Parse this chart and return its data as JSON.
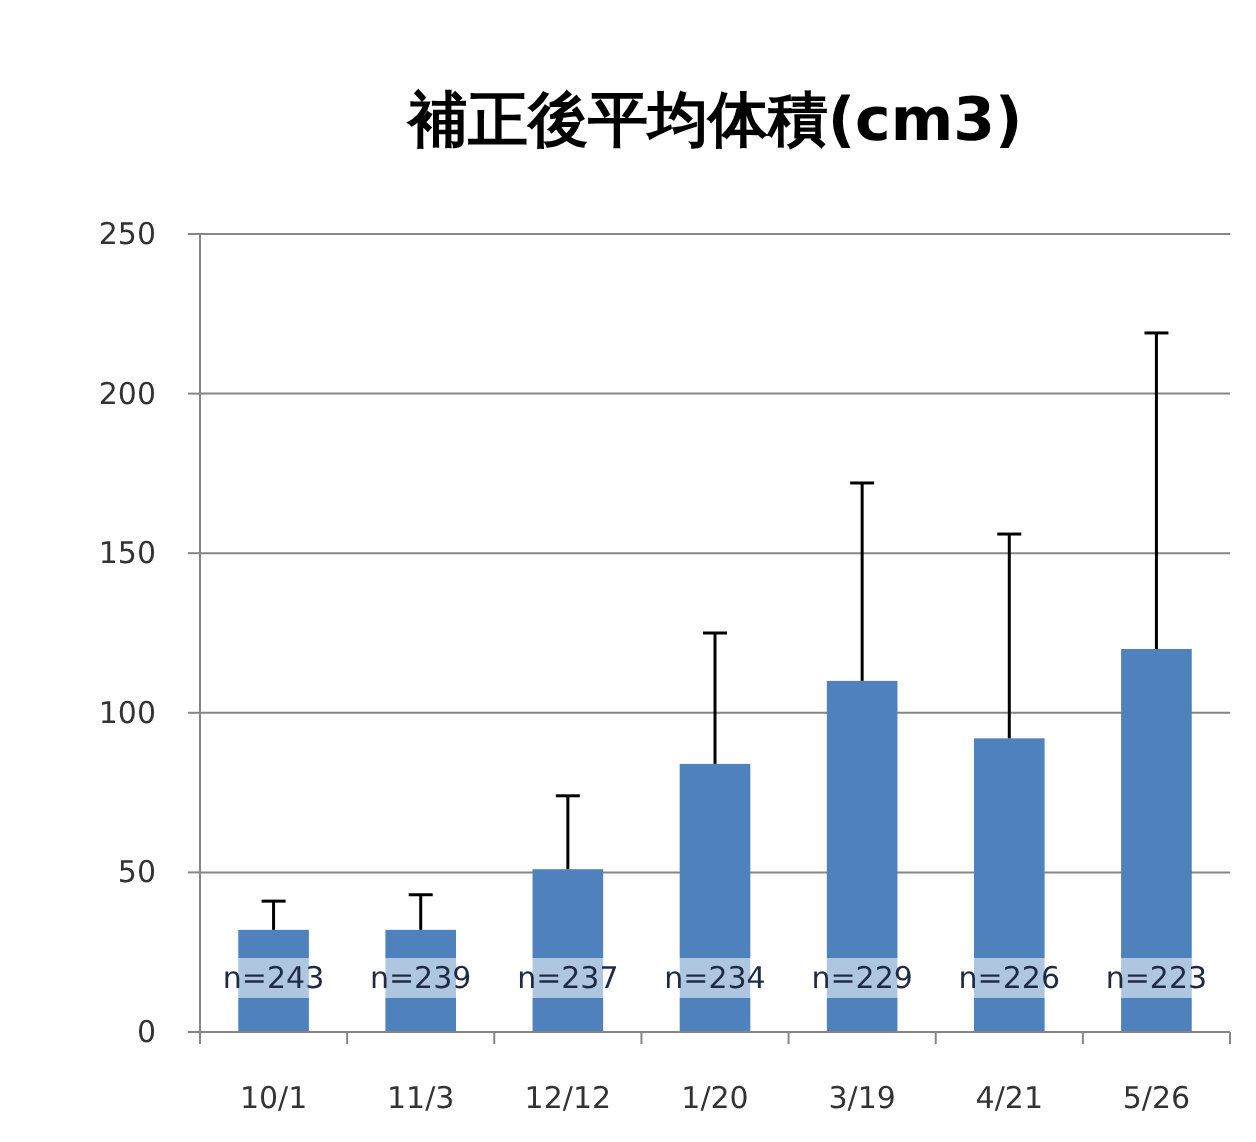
{
  "chart_data": {
    "type": "bar",
    "title": "補正後平均体積(cm3)",
    "categories": [
      "10/1",
      "11/3",
      "12/12",
      "1/20",
      "3/19",
      "4/21",
      "5/26"
    ],
    "values": [
      32,
      32,
      51,
      84,
      110,
      92,
      120
    ],
    "errors": [
      [
        32,
        41
      ],
      [
        32,
        43
      ],
      [
        51,
        74
      ],
      [
        84,
        125
      ],
      [
        110,
        172
      ],
      [
        92,
        156
      ],
      [
        120,
        219
      ]
    ],
    "color": "#4f81bd",
    "ylim": [
      0,
      250
    ],
    "yticks": [
      0,
      50,
      100,
      150,
      200,
      250
    ],
    "grid": "y",
    "annotations": [
      "n=243",
      "n=239",
      "n=237",
      "n=234",
      "n=229",
      "n=226",
      "n=223"
    ]
  }
}
